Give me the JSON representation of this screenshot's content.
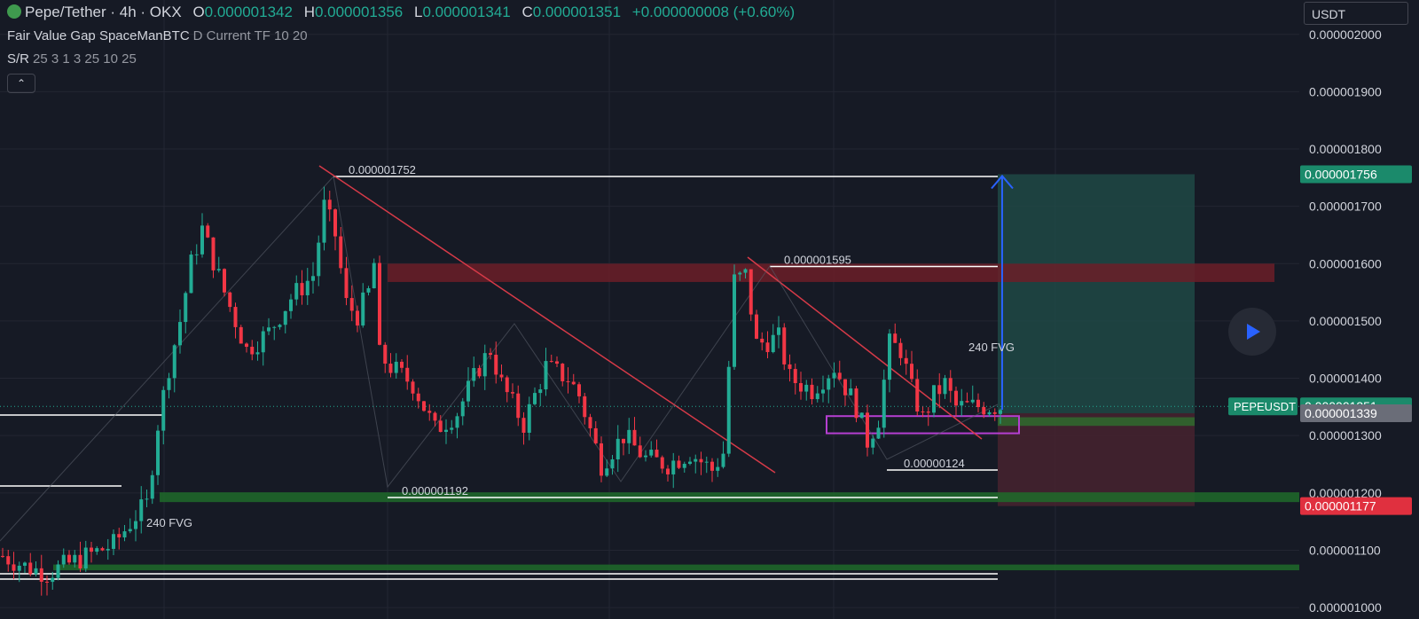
{
  "header": {
    "symbol": "Pepe/Tether · 4h · OKX",
    "o_label": "O",
    "o_value": "0.000001342",
    "h_label": "H",
    "h_value": "0.000001356",
    "l_label": "L",
    "l_value": "0.000001341",
    "c_label": "C",
    "c_value": "0.000001351",
    "change": "+0.000000008 (+0.60%)"
  },
  "indicators": [
    {
      "name": "Fair Value Gap SpaceManBTC",
      "params": "D Current TF 10 20"
    },
    {
      "name": "S/R",
      "params": "25 3 1 3 25 10 25"
    }
  ],
  "currency_button": "USDT",
  "colors": {
    "up": "#22ab94",
    "down": "#f23645",
    "bg": "#161a25",
    "grid": "#232632",
    "accent": "#2962ff"
  },
  "chart_data": {
    "type": "candlestick",
    "ylim": [
      9.8e-07,
      2.06e-06
    ],
    "y_ticks": [
      "0.000001000",
      "0.000001100",
      "0.000001200",
      "0.000001300",
      "0.000001400",
      "0.000001500",
      "0.000001600",
      "0.000001700",
      "0.000001800",
      "0.000001900",
      "0.000002000"
    ],
    "y_tick_values": [
      1e-06,
      1.1e-06,
      1.2e-06,
      1.3e-06,
      1.4e-06,
      1.5e-06,
      1.6e-06,
      1.7e-06,
      1.8e-06,
      1.9e-06,
      2e-06
    ],
    "candle_count": 181,
    "close_path": [
      [
        0,
        1.09
      ],
      [
        4,
        1.072
      ],
      [
        8,
        1.06
      ],
      [
        14,
        1.085
      ],
      [
        20,
        1.11
      ],
      [
        24,
        1.16
      ],
      [
        26,
        1.18
      ],
      [
        28,
        1.32
      ],
      [
        30,
        1.42
      ],
      [
        32,
        1.5
      ],
      [
        34,
        1.6
      ],
      [
        36,
        1.66
      ],
      [
        40,
        1.55
      ],
      [
        44,
        1.45
      ],
      [
        48,
        1.48
      ],
      [
        52,
        1.54
      ],
      [
        56,
        1.58
      ],
      [
        58,
        1.7
      ],
      [
        60,
        1.65
      ],
      [
        62,
        1.53
      ],
      [
        64,
        1.51
      ],
      [
        66,
        1.55
      ],
      [
        67,
        1.6
      ],
      [
        68,
        1.44
      ],
      [
        70,
        1.42
      ],
      [
        74,
        1.39
      ],
      [
        78,
        1.31
      ],
      [
        82,
        1.34
      ],
      [
        86,
        1.42
      ],
      [
        88,
        1.45
      ],
      [
        90,
        1.39
      ],
      [
        94,
        1.32
      ],
      [
        98,
        1.42
      ],
      [
        102,
        1.4
      ],
      [
        104,
        1.37
      ],
      [
        108,
        1.25
      ],
      [
        112,
        1.3
      ],
      [
        116,
        1.26
      ],
      [
        120,
        1.25
      ],
      [
        124,
        1.27
      ],
      [
        128,
        1.24
      ],
      [
        130,
        1.27
      ],
      [
        132,
        1.57
      ],
      [
        134,
        1.58
      ],
      [
        136,
        1.46
      ],
      [
        140,
        1.47
      ],
      [
        142,
        1.4
      ],
      [
        146,
        1.38
      ],
      [
        150,
        1.42
      ],
      [
        154,
        1.35
      ],
      [
        156,
        1.29
      ],
      [
        158,
        1.33
      ],
      [
        160,
        1.46
      ],
      [
        162,
        1.45
      ],
      [
        164,
        1.38
      ],
      [
        166,
        1.33
      ],
      [
        168,
        1.37
      ],
      [
        170,
        1.39
      ],
      [
        172,
        1.35
      ],
      [
        175,
        1.351
      ]
    ],
    "current_price": "0.000001351",
    "current_value": 1.351e-06,
    "ticker_label": "PEPEUSDT",
    "level_labels": [
      {
        "text": "0.000001752",
        "value": 1.752e-06
      },
      {
        "text": "0.000001595",
        "value": 1.595e-06
      },
      {
        "text": "0.00000124",
        "value": 1.24e-06
      },
      {
        "text": "0.000001192",
        "value": 1.192e-06
      }
    ],
    "fvg_labels": [
      {
        "text": "240 FVG",
        "value": 1.14e-06
      },
      {
        "text": "240 FVG",
        "value": 1.43e-06
      }
    ],
    "position": {
      "target_label": "0.000001756",
      "target": 1.756e-06,
      "entry_label": "0.000001339",
      "entry": 1.339e-06,
      "stop_label": "0.000001177",
      "stop": 1.177e-06
    },
    "zones": [
      {
        "type": "supply",
        "top": 1.6e-06,
        "bottom": 1.568e-06
      },
      {
        "type": "demand",
        "top": 1.201e-06,
        "bottom": 1.184e-06
      },
      {
        "type": "demand",
        "top": 1.075e-06,
        "bottom": 1.065e-06
      },
      {
        "type": "demand",
        "top": 1.332e-06,
        "bottom": 1.317e-06
      }
    ]
  }
}
